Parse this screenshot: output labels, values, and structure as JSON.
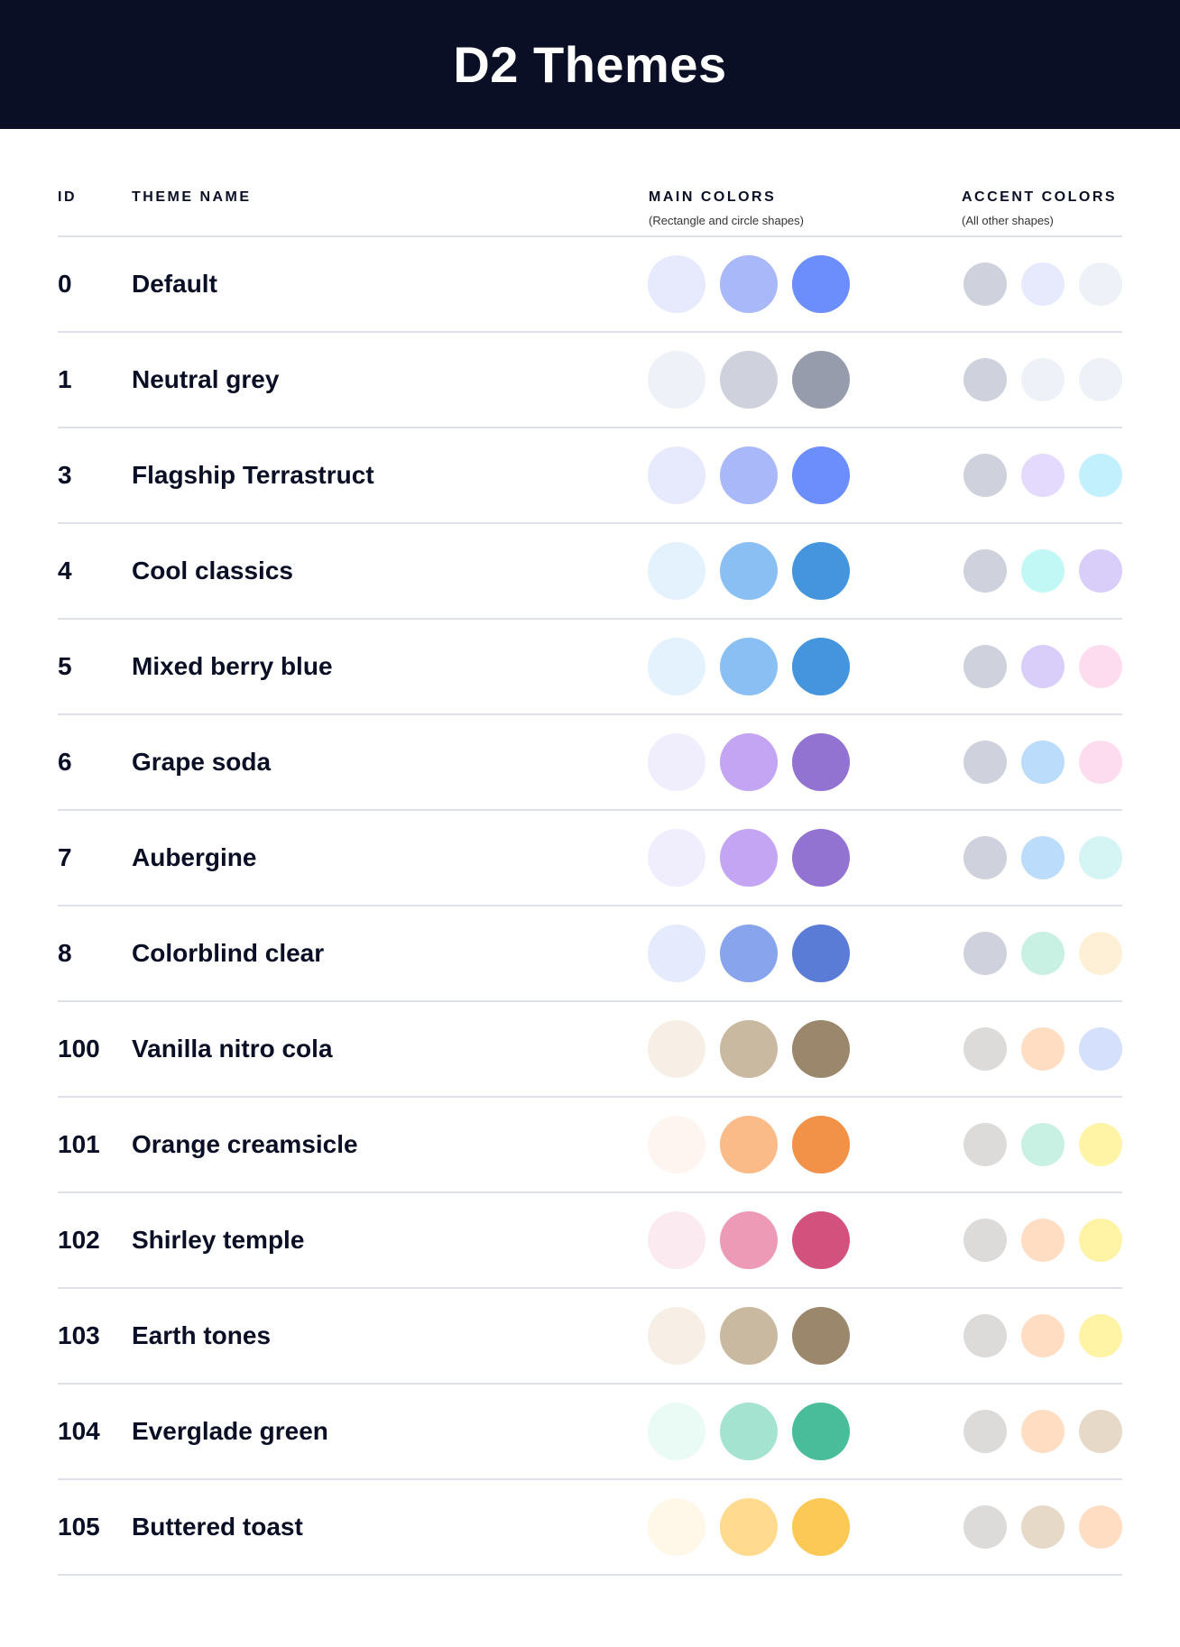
{
  "title": "D2 Themes",
  "columns": {
    "id": "ID",
    "name": "THEME NAME",
    "main": "MAIN COLORS",
    "main_sub": "(Rectangle and circle shapes)",
    "accent": "ACCENT COLORS",
    "accent_sub": "(All other shapes)"
  },
  "themes": [
    {
      "id": "0",
      "name": "Default",
      "main": [
        "#E7E9FD",
        "#A9B8F8",
        "#6C8DFC"
      ],
      "accent": [
        "#CFD2DD",
        "#E7E9FD",
        "#EEF1F8"
      ]
    },
    {
      "id": "1",
      "name": "Neutral grey",
      "main": [
        "#EEF1F8",
        "#CFD2DD",
        "#979CAC"
      ],
      "accent": [
        "#CFD2DD",
        "#EEF1F8",
        "#EEF1F8"
      ]
    },
    {
      "id": "3",
      "name": "Flagship Terrastruct",
      "main": [
        "#E7E9FD",
        "#A9B8F8",
        "#6C8DFC"
      ],
      "accent": [
        "#CFD2DD",
        "#E3DAFE",
        "#C3F0FD"
      ]
    },
    {
      "id": "4",
      "name": "Cool classics",
      "main": [
        "#E3F2FD",
        "#8ABFF4",
        "#4495DE"
      ],
      "accent": [
        "#CFD2DD",
        "#C1F8F6",
        "#D9CEFA"
      ]
    },
    {
      "id": "5",
      "name": "Mixed berry blue",
      "main": [
        "#E3F2FD",
        "#8ABFF4",
        "#4495DE"
      ],
      "accent": [
        "#CFD2DD",
        "#D9CEFA",
        "#FDDCEF"
      ]
    },
    {
      "id": "6",
      "name": "Grape soda",
      "main": [
        "#F0EDFD",
        "#C3A5F4",
        "#9373D1"
      ],
      "accent": [
        "#CFD2DD",
        "#BCDCFC",
        "#FDDCEF"
      ]
    },
    {
      "id": "7",
      "name": "Aubergine",
      "main": [
        "#F0EDFD",
        "#C3A5F4",
        "#9373D1"
      ],
      "accent": [
        "#CFD2DD",
        "#BCDCFC",
        "#D5F4F4"
      ]
    },
    {
      "id": "8",
      "name": "Colorblind clear",
      "main": [
        "#E5EBFD",
        "#87A4EC",
        "#5A7BD6"
      ],
      "accent": [
        "#CFD2DD",
        "#C8F1E4",
        "#FEF0D6"
      ]
    },
    {
      "id": "100",
      "name": "Vanilla nitro cola",
      "main": [
        "#F7EFE5",
        "#C9B9A0",
        "#9A876C"
      ],
      "accent": [
        "#DCDBD9",
        "#FEDDC3",
        "#D5E0FD"
      ]
    },
    {
      "id": "101",
      "name": "Orange creamsicle",
      "main": [
        "#FFF5F0",
        "#FBBB89",
        "#F29148"
      ],
      "accent": [
        "#DCDBD9",
        "#C8F1E4",
        "#FFF3A6"
      ]
    },
    {
      "id": "102",
      "name": "Shirley temple",
      "main": [
        "#FBEBF1",
        "#EC9AB6",
        "#D2527D"
      ],
      "accent": [
        "#DCDBD9",
        "#FEDDC3",
        "#FFF3A6"
      ]
    },
    {
      "id": "103",
      "name": "Earth tones",
      "main": [
        "#F7EFE5",
        "#C9B9A0",
        "#9A876C"
      ],
      "accent": [
        "#DCDBD9",
        "#FEDDC3",
        "#FFF3A6"
      ]
    },
    {
      "id": "104",
      "name": "Everglade green",
      "main": [
        "#E9FBF4",
        "#A5E3D1",
        "#49BD9A"
      ],
      "accent": [
        "#DCDBD9",
        "#FEDDC3",
        "#E6D9C8"
      ]
    },
    {
      "id": "105",
      "name": "Buttered toast",
      "main": [
        "#FFF7E8",
        "#FFDA8F",
        "#FCC957"
      ],
      "accent": [
        "#DCDBD9",
        "#E6D9C8",
        "#FEDDC3"
      ]
    }
  ]
}
